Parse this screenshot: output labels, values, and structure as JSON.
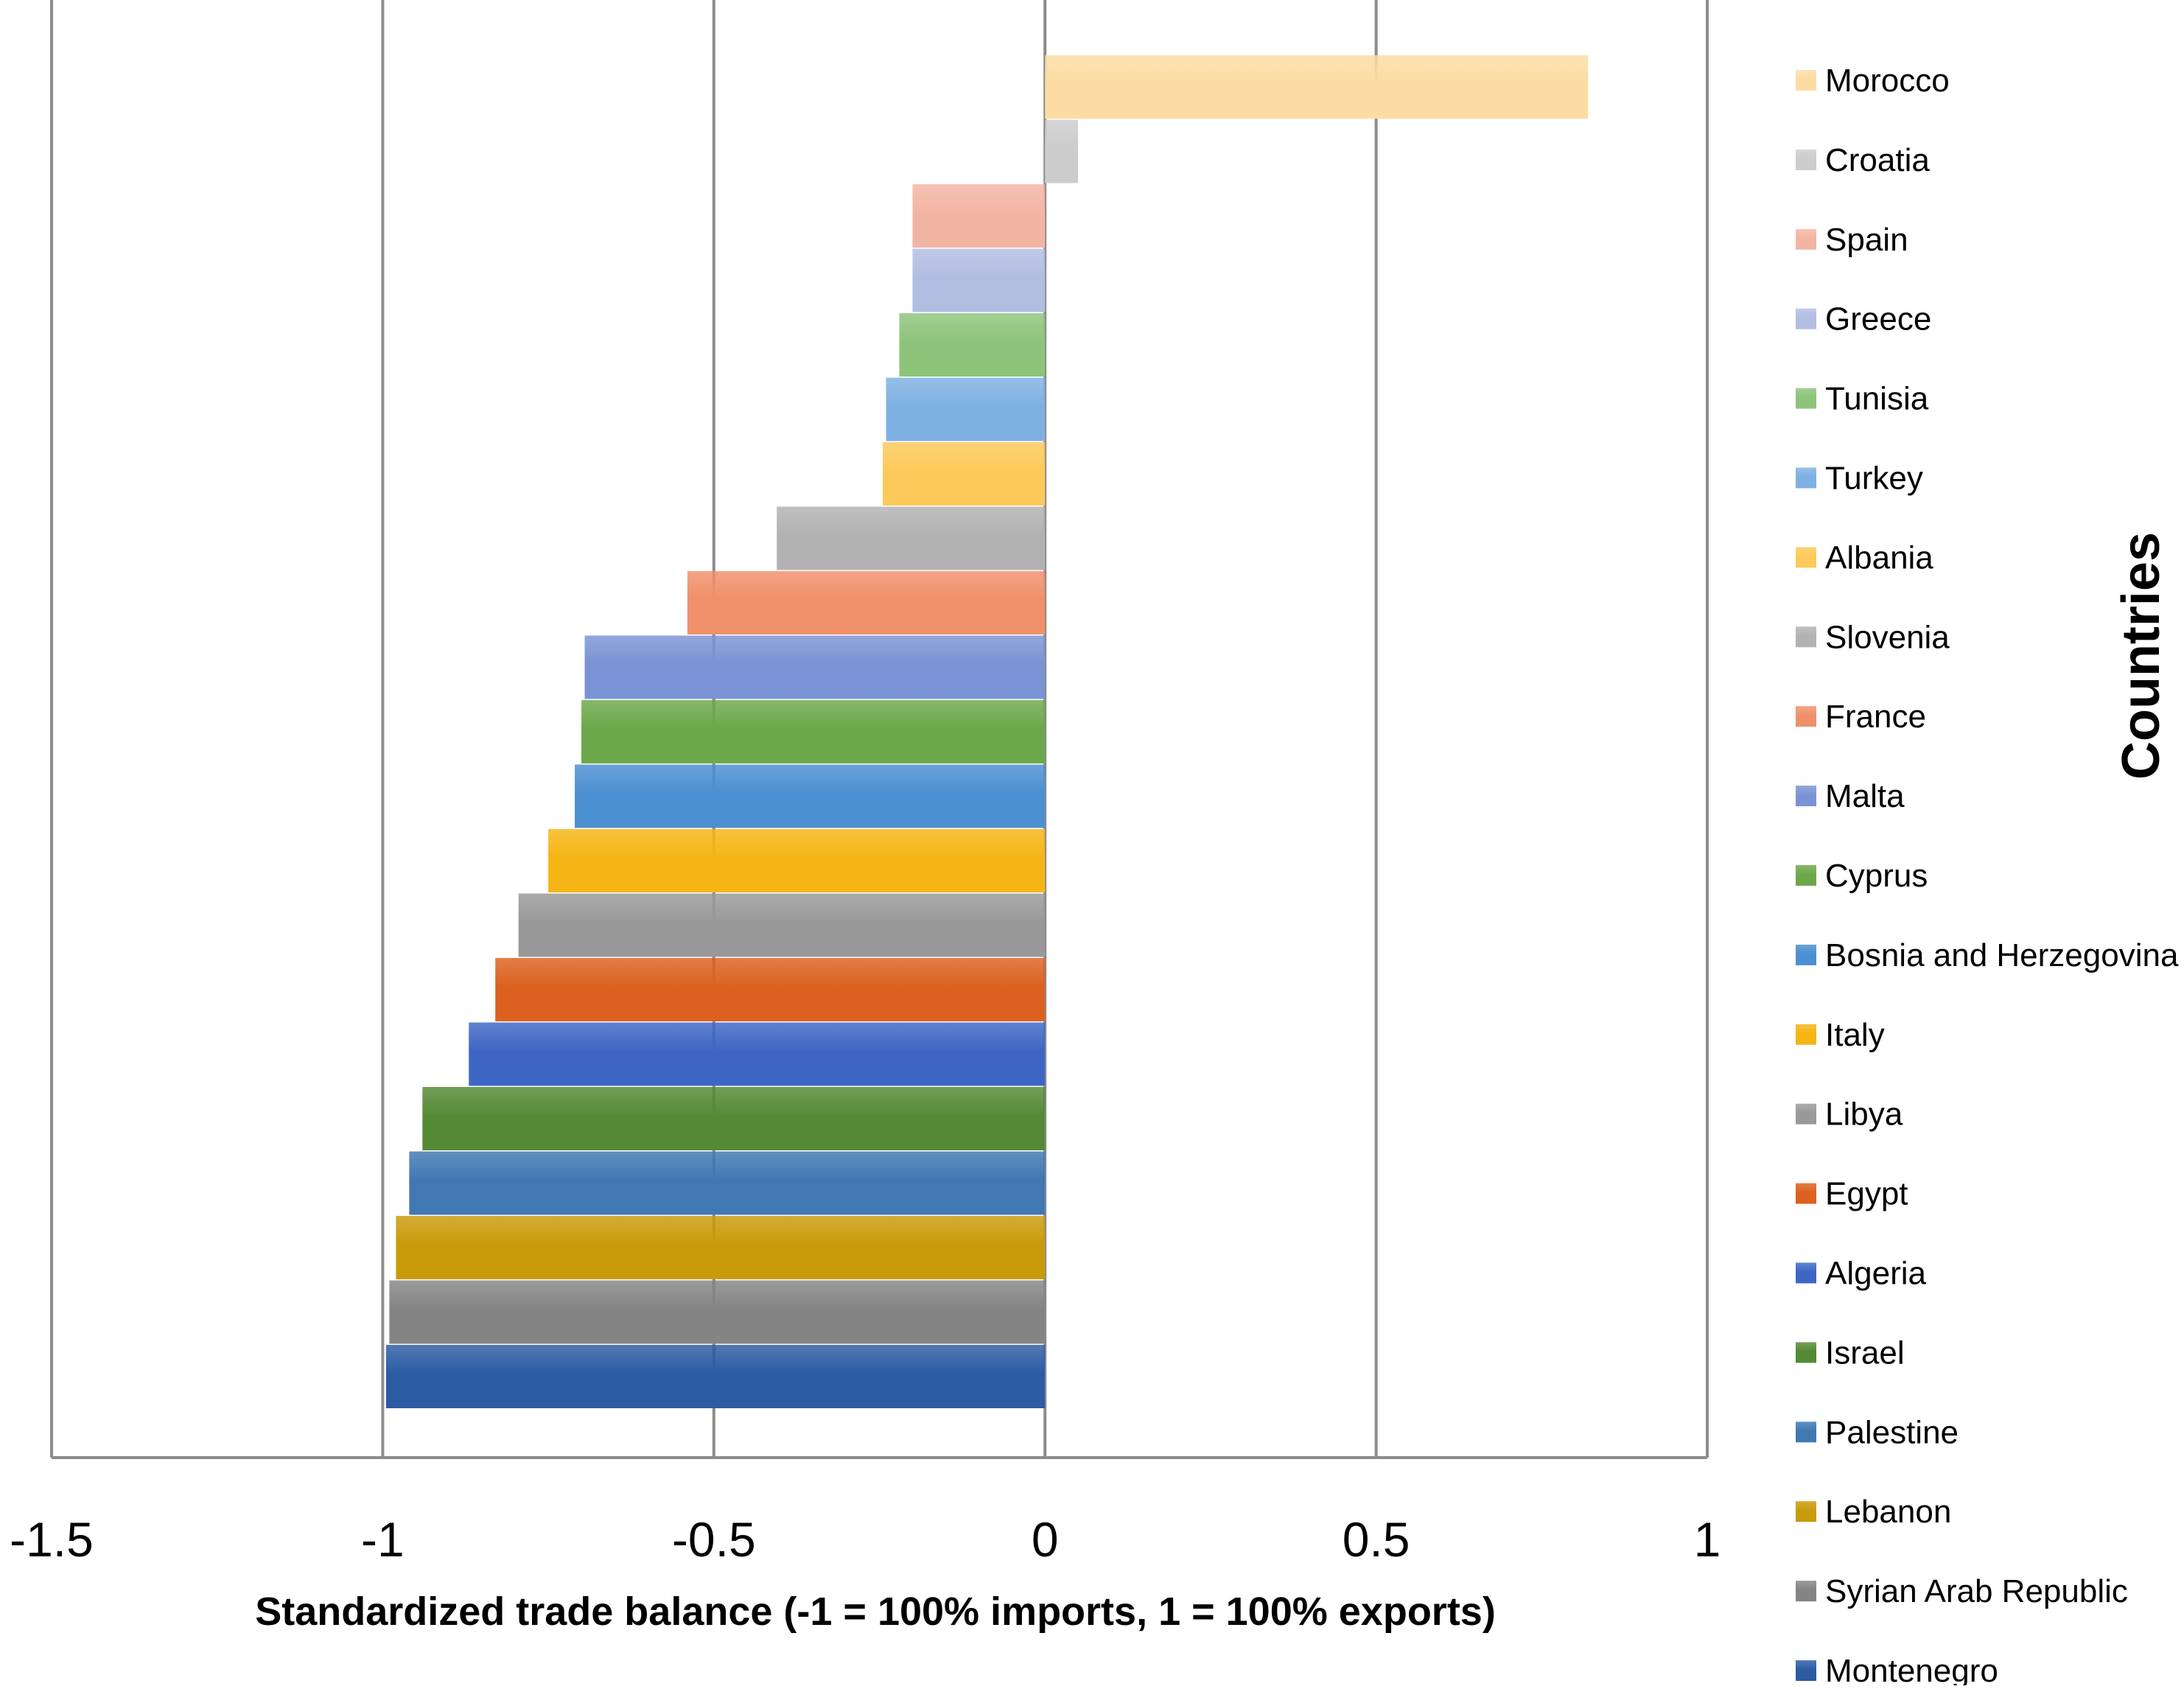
{
  "chart_data": {
    "type": "bar",
    "orientation": "horizontal",
    "title": "",
    "xlabel": "Standardized trade balance (-1 = 100% imports, 1 = 100% exports)",
    "ylabel": "Countries",
    "xlim": [
      -1.5,
      1
    ],
    "xticks": [
      -1.5,
      -1,
      -0.5,
      0,
      0.5,
      1
    ],
    "xtick_labels": [
      "-1.5",
      "-1",
      "-0.5",
      "0",
      "0.5",
      "1"
    ],
    "grid": "vertical",
    "legend_position": "right",
    "categories": [
      "Morocco",
      "Croatia",
      "Spain",
      "Greece",
      "Tunisia",
      "Turkey",
      "Albania",
      "Slovenia",
      "France",
      "Malta",
      "Cyprus",
      "Bosnia and Herzegovina",
      "Italy",
      "Libya",
      "Egypt",
      "Algeria",
      "Israel",
      "Palestine",
      "Lebanon",
      "Syrian Arab Republic",
      "Montenegro"
    ],
    "values": [
      0.82,
      0.05,
      -0.2,
      -0.2,
      -0.22,
      -0.24,
      -0.245,
      -0.405,
      -0.54,
      -0.695,
      -0.7,
      -0.71,
      -0.75,
      -0.795,
      -0.83,
      -0.87,
      -0.94,
      -0.96,
      -0.98,
      -0.99,
      -0.995
    ],
    "colors": [
      "#fcdca2",
      "#cccccc",
      "#f3b5a3",
      "#b2bde2",
      "#8ec47a",
      "#7fb0e2",
      "#fdc95a",
      "#b2b2b2",
      "#f0906a",
      "#7a93d4",
      "#6ca84a",
      "#4a8fd0",
      "#f5b515",
      "#999999",
      "#dc6120",
      "#3d66c4",
      "#548a34",
      "#3f78b3",
      "#c99a0a",
      "#848484",
      "#2c5ba4"
    ]
  }
}
